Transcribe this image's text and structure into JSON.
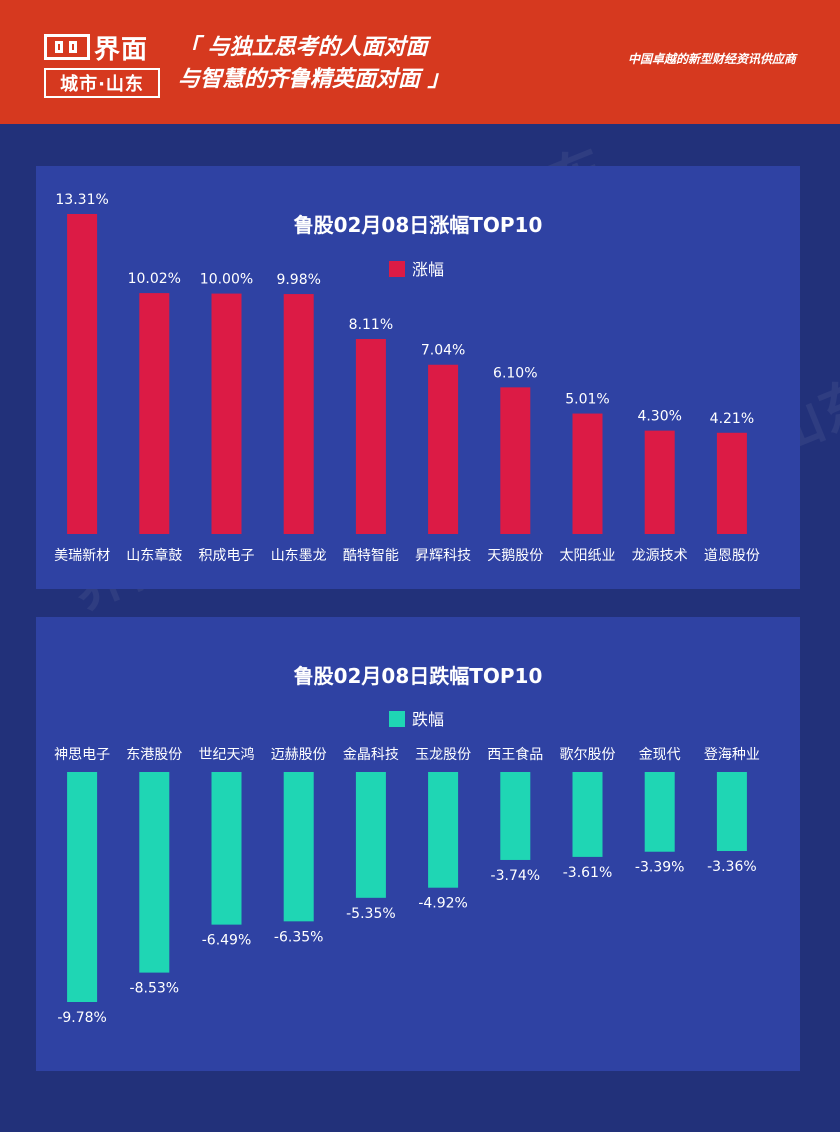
{
  "header": {
    "logo_name": "界面",
    "logo_sub": "城市·山东",
    "slogan_line1": "「 与独立思考的人面对面",
    "slogan_line2": "与智慧的齐鲁精英面对面 」",
    "tagline": "中国卓越的新型财经资讯供应商"
  },
  "colors": {
    "header_bg": "#d6391f",
    "page_bg": "#22317a",
    "panel_bg": "#2f42a3",
    "gain_bar": "#dc1b45",
    "loss_bar": "#1fd6b4"
  },
  "chart_data": [
    {
      "type": "bar",
      "title": "鲁股02月08日涨幅TOP10",
      "legend": "涨幅",
      "categories": [
        "美瑞新材",
        "山东章鼓",
        "积成电子",
        "山东墨龙",
        "酷特智能",
        "昇辉科技",
        "天鹅股份",
        "太阳纸业",
        "龙源技术",
        "道恩股份"
      ],
      "values": [
        13.31,
        10.02,
        10.0,
        9.98,
        8.11,
        7.04,
        6.1,
        5.01,
        4.3,
        4.21
      ],
      "labels": [
        "13.31%",
        "10.02%",
        "10.00%",
        "9.98%",
        "8.11%",
        "7.04%",
        "6.10%",
        "5.01%",
        "4.30%",
        "4.21%"
      ],
      "ylim": [
        0,
        13.31
      ],
      "legend_position": "top-center",
      "grid": false
    },
    {
      "type": "bar",
      "title": "鲁股02月08日跌幅TOP10",
      "legend": "跌幅",
      "categories": [
        "神思电子",
        "东港股份",
        "世纪天鸿",
        "迈赫股份",
        "金晶科技",
        "玉龙股份",
        "西王食品",
        "歌尔股份",
        "金现代",
        "登海种业"
      ],
      "values": [
        -9.78,
        -8.53,
        -6.49,
        -6.35,
        -5.35,
        -4.92,
        -3.74,
        -3.61,
        -3.39,
        -3.36
      ],
      "labels": [
        "-9.78%",
        "-8.53%",
        "-6.49%",
        "-6.35%",
        "-5.35%",
        "-4.92%",
        "-3.74%",
        "-3.61%",
        "-3.39%",
        "-3.36%"
      ],
      "ylim": [
        -9.78,
        0
      ],
      "legend_position": "top-center",
      "grid": false
    }
  ]
}
